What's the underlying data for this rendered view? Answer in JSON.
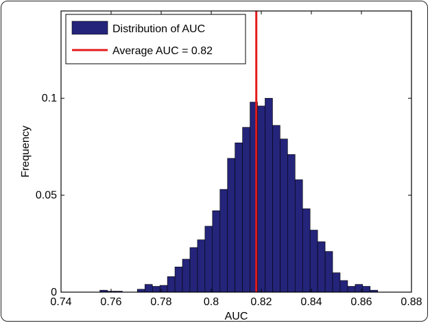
{
  "chart_data": {
    "type": "bar",
    "xlabel": "AUC",
    "ylabel": "Frequency",
    "xlim": [
      0.74,
      0.88
    ],
    "ylim": [
      0,
      0.145
    ],
    "xticks": [
      0.74,
      0.76,
      0.78,
      0.8,
      0.82,
      0.84,
      0.86,
      0.88
    ],
    "xtick_labels": [
      "0.74",
      "0.76",
      "0.78",
      "0.8",
      "0.82",
      "0.84",
      "0.86",
      "0.88"
    ],
    "yticks": [
      0,
      0.05,
      0.1
    ],
    "ytick_labels": [
      "0",
      "0.05",
      "0.1"
    ],
    "bin_width": 0.003,
    "bin_starts": [
      0.7555,
      0.7585,
      0.7615,
      0.7645,
      0.7675,
      0.7705,
      0.7735,
      0.7765,
      0.7795,
      0.7825,
      0.7855,
      0.7885,
      0.7915,
      0.7945,
      0.7975,
      0.8005,
      0.8035,
      0.8065,
      0.8095,
      0.8125,
      0.8155,
      0.8185,
      0.8215,
      0.8245,
      0.8275,
      0.8305,
      0.8335,
      0.8365,
      0.8395,
      0.8425,
      0.8455,
      0.8485,
      0.8515,
      0.8545,
      0.8575,
      0.8605,
      0.8635
    ],
    "values": [
      0.001,
      0.0005,
      0.0005,
      0.0,
      0.0,
      0.0015,
      0.004,
      0.003,
      0.0035,
      0.008,
      0.013,
      0.017,
      0.023,
      0.027,
      0.034,
      0.042,
      0.053,
      0.069,
      0.077,
      0.085,
      0.098,
      0.096,
      0.1,
      0.086,
      0.079,
      0.071,
      0.058,
      0.043,
      0.032,
      0.026,
      0.021,
      0.01,
      0.006,
      0.003,
      0.004,
      0.003,
      0.001
    ],
    "bar_color": "#24247a",
    "reference_line": {
      "x": 0.818,
      "color": "#e41b1b"
    },
    "legend": {
      "position": "top-left",
      "entries": [
        "Distribution of AUC",
        "Average AUC = 0.82"
      ]
    }
  }
}
